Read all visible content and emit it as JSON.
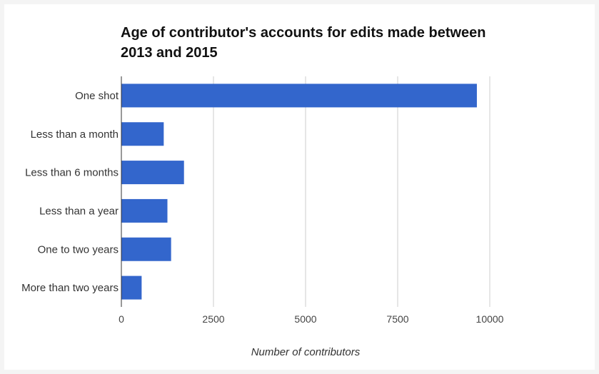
{
  "chart_data": {
    "type": "bar",
    "orientation": "horizontal",
    "title": "Age of contributor's accounts for edits made between 2013 and 2015",
    "xlabel": "Number of contributors",
    "ylabel": "",
    "categories": [
      "One shot",
      "Less than a month",
      "Less than 6 months",
      "Less than a year",
      "One to two years",
      "More than two years"
    ],
    "values": [
      9650,
      1150,
      1700,
      1250,
      1350,
      550
    ],
    "xlim": [
      0,
      10000
    ],
    "xticks": [
      "0",
      "2500",
      "5000",
      "7500",
      "10000"
    ],
    "grid": true,
    "bar_color": "#3366cc"
  }
}
